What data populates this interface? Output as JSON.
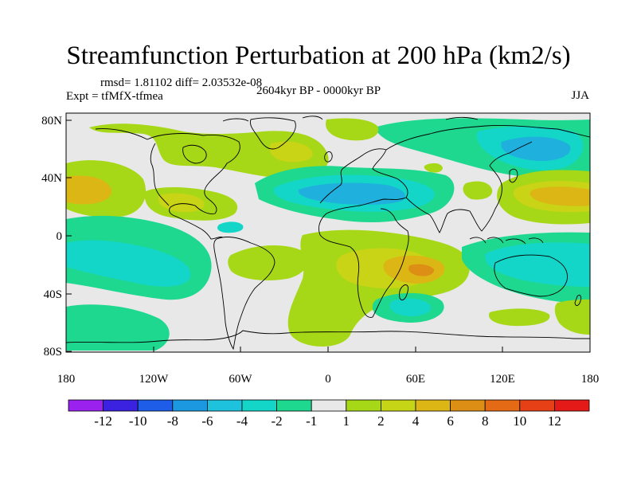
{
  "title": "Streamfunction Perturbation at 200 hPa (km2/s)",
  "stats": "rmsd= 1.81102 diff= 2.03532e-08",
  "experiment": "Expt = tfMfX-tfmea",
  "period": "2604kyr BP - 0000kyr BP",
  "season": "JJA",
  "axes": {
    "lat_ticks": [
      "80N",
      "40N",
      "0",
      "40S",
      "80S"
    ],
    "lon_ticks": [
      "180",
      "120W",
      "60W",
      "0",
      "60E",
      "120E",
      "180"
    ]
  },
  "colorbar": {
    "labels": [
      "-12",
      "-10",
      "-8",
      "-6",
      "-4",
      "-2",
      "-1",
      "1",
      "2",
      "4",
      "6",
      "8",
      "10",
      "12"
    ],
    "colors": [
      "#9b22ee",
      "#3b22e0",
      "#1e5de8",
      "#1b98e0",
      "#1fc2dd",
      "#13d6c8",
      "#1ed890",
      "#e8e8e8",
      "#a6d817",
      "#c6d515",
      "#dcb615",
      "#dc8e15",
      "#e56a15",
      "#e64017",
      "#e31a17"
    ]
  },
  "colors": {
    "background": "#e8e8e8",
    "blue": "#1fb0dd",
    "cyan": "#13d6c8",
    "green": "#1ed890",
    "lime": "#a6d817",
    "yellow": "#c8d415",
    "orange": "#dcb615",
    "dark_orange": "#dc8e15"
  }
}
